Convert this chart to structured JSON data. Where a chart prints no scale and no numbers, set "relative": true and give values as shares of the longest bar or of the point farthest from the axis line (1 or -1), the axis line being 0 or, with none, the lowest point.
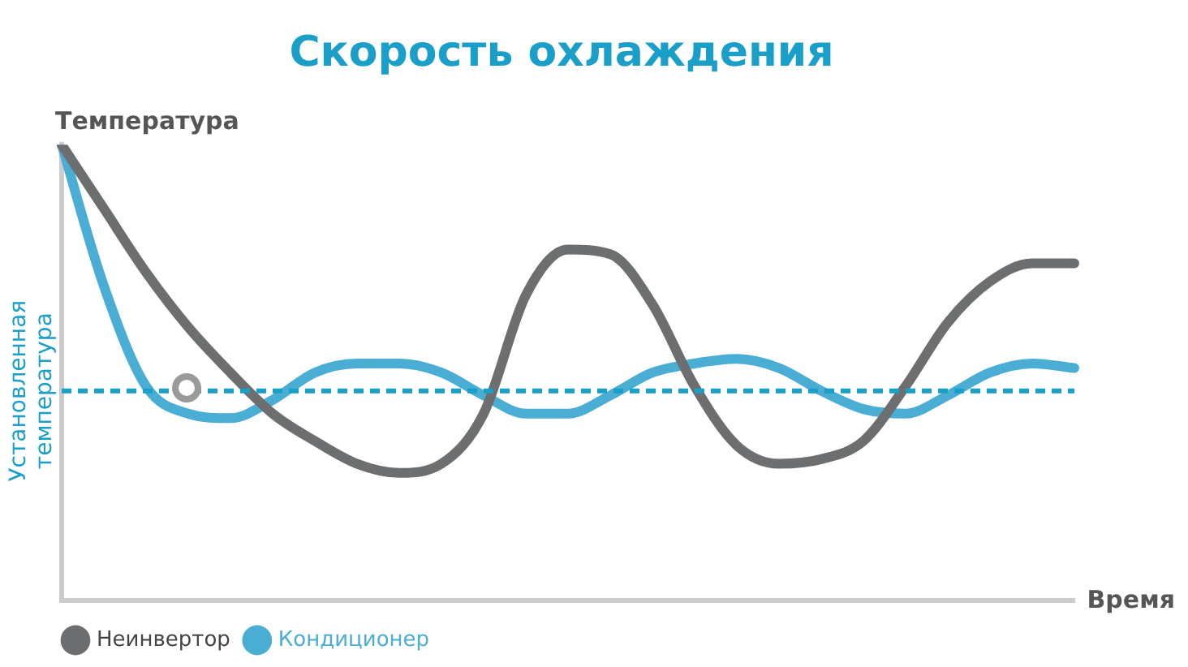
{
  "chart_data": {
    "type": "line",
    "title": "Скорость охлаждения",
    "ylabel": "Температура",
    "xlabel": "Время",
    "relative": true,
    "legend": "bottom",
    "grid": false,
    "marker": "none",
    "line_style": "solid",
    "categories": [
      null,
      null,
      null,
      null,
      null,
      null,
      null,
      null,
      null,
      null,
      null,
      null,
      null,
      null,
      null,
      null,
      null,
      null,
      null,
      null,
      null,
      null,
      null,
      null,
      null
    ],
    "series": [
      {
        "name": "Неинвертор",
        "color": "#6d6e70",
        "values": [
          1.0,
          0.86,
          0.72,
          0.6,
          0.5,
          0.41,
          0.35,
          0.3,
          0.28,
          0.3,
          0.41,
          0.67,
          0.77,
          0.76,
          0.65,
          0.47,
          0.34,
          0.3,
          0.31,
          0.35,
          0.47,
          0.61,
          0.7,
          0.74,
          0.74
        ]
      },
      {
        "name": "Кондиционер",
        "color": "#4aaed4",
        "values": [
          1.0,
          0.69,
          0.47,
          0.41,
          0.4,
          0.44,
          0.5,
          0.52,
          0.52,
          0.5,
          0.45,
          0.41,
          0.41,
          0.45,
          0.5,
          0.52,
          0.53,
          0.51,
          0.46,
          0.42,
          0.41,
          0.45,
          0.5,
          0.52,
          0.51
        ]
      }
    ],
    "ref_lines": [
      {
        "axis": "y",
        "value": 0.46,
        "label": "Установленная температура",
        "color": "#1aa0c8",
        "line_style": "dashed"
      }
    ]
  }
}
